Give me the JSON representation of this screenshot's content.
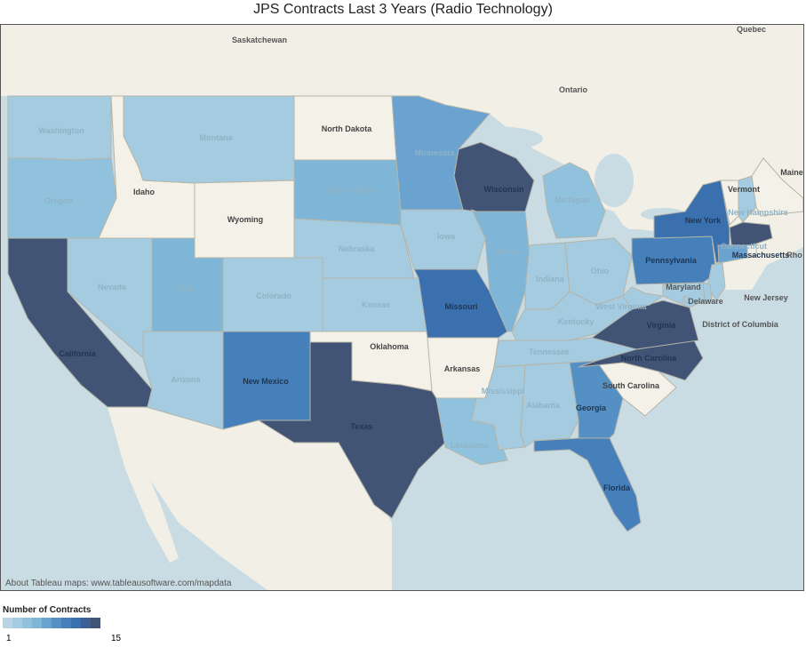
{
  "title": "JPS Contracts Last 3 Years (Radio Technology)",
  "attribution": "About Tableau maps: www.tableausoftware.com/mapdata",
  "legend": {
    "title": "Number of Contracts",
    "min": "1",
    "max": "15",
    "ramp": [
      "#b9d4e3",
      "#a5cbe0",
      "#90c2de",
      "#7fb6d8",
      "#6aa3cf",
      "#5590c4",
      "#4580bb",
      "#3b70ae",
      "#3c5f95",
      "#425476"
    ]
  },
  "colors": {
    "water": "#c9dbe3",
    "land": "#f2f0e6",
    "border": "#b5b5a9",
    "no_data": "#f4f2e8"
  },
  "places": {
    "saskatchewan": "Saskatchewan",
    "ontario": "Ontario",
    "quebec": "Quebec"
  },
  "states": {
    "washington": {
      "label": "Washington",
      "level": 2
    },
    "oregon": {
      "label": "Oregon",
      "level": 3
    },
    "california": {
      "label": "California",
      "level": 10
    },
    "idaho": {
      "label": "Idaho",
      "level": 0
    },
    "nevada": {
      "label": "Nevada",
      "level": 2
    },
    "montana": {
      "label": "Montana",
      "level": 2
    },
    "wyoming": {
      "label": "Wyoming",
      "level": 0
    },
    "utah": {
      "label": "Utah",
      "level": 4
    },
    "arizona": {
      "label": "Arizona",
      "level": 2
    },
    "colorado": {
      "label": "Colorado",
      "level": 2
    },
    "new_mexico": {
      "label": "New Mexico",
      "level": 7
    },
    "north_dakota": {
      "label": "North Dakota",
      "level": 0
    },
    "south_dakota": {
      "label": "South Dakota",
      "level": 4
    },
    "nebraska": {
      "label": "Nebraska",
      "level": 2
    },
    "kansas": {
      "label": "Kansas",
      "level": 2
    },
    "oklahoma": {
      "label": "Oklahoma",
      "level": 0
    },
    "texas": {
      "label": "Texas",
      "level": 10
    },
    "minnesota": {
      "label": "Minnesota",
      "level": 5
    },
    "iowa": {
      "label": "Iowa",
      "level": 2
    },
    "missouri": {
      "label": "Missouri",
      "level": 8
    },
    "arkansas": {
      "label": "Arkansas",
      "level": 0
    },
    "louisiana": {
      "label": "Louisiana",
      "level": 3
    },
    "wisconsin": {
      "label": "Wisconsin",
      "level": 10
    },
    "illinois": {
      "label": "Illinois",
      "level": 4
    },
    "michigan": {
      "label": "Michigan",
      "level": 3
    },
    "indiana": {
      "label": "Indiana",
      "level": 2
    },
    "ohio": {
      "label": "Ohio",
      "level": 2
    },
    "kentucky": {
      "label": "Kentucky",
      "level": 2
    },
    "tennessee": {
      "label": "Tennessee",
      "level": 2
    },
    "mississippi": {
      "label": "Mississippi",
      "level": 2
    },
    "alabama": {
      "label": "Alabama",
      "level": 2
    },
    "georgia": {
      "label": "Georgia",
      "level": 6
    },
    "florida": {
      "label": "Florida",
      "level": 7
    },
    "south_carolina": {
      "label": "South Carolina",
      "level": 0
    },
    "north_carolina": {
      "label": "North Carolina",
      "level": 10
    },
    "virginia": {
      "label": "Virginia",
      "level": 10
    },
    "west_virginia": {
      "label": "West Virginia",
      "level": 2
    },
    "pennsylvania": {
      "label": "Pennsylvania",
      "level": 7
    },
    "new_york": {
      "label": "New York",
      "level": 8
    },
    "vermont": {
      "label": "Vermont",
      "level": 0
    },
    "new_hampshire": {
      "label": "New Hampshire",
      "level": 2
    },
    "maine": {
      "label": "Maine",
      "level": 0
    },
    "massachusetts": {
      "label": "Massachusetts",
      "level": 10
    },
    "connecticut": {
      "label": "Connecticut",
      "level": 5
    },
    "rhode_island": {
      "label": "Rho",
      "level": 0
    },
    "new_jersey": {
      "label": "New Jersey",
      "level": 2
    },
    "delaware": {
      "label": "Delaware",
      "level": 2
    },
    "maryland": {
      "label": "Maryland",
      "level": 2
    },
    "district_of_columbia": {
      "label": "District of Columbia",
      "level": 2
    }
  }
}
